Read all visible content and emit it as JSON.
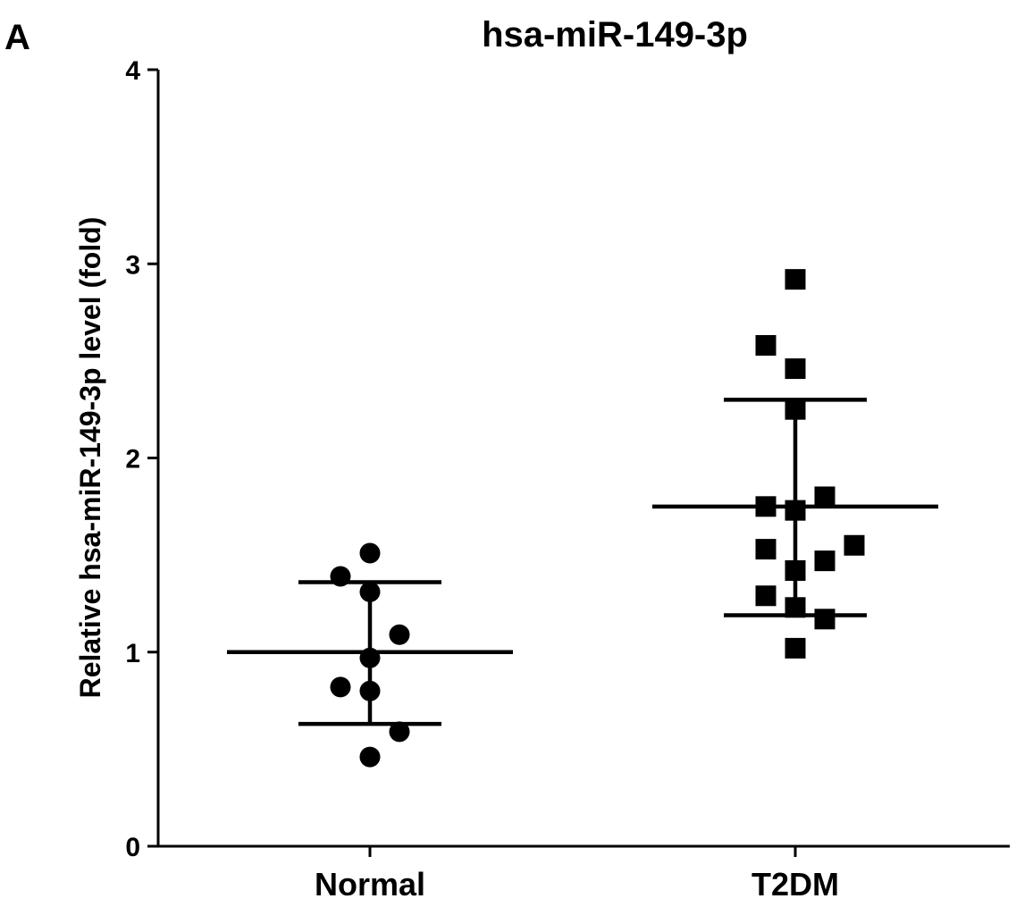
{
  "chart_data": {
    "type": "scatter",
    "panel_label": "A",
    "title": "hsa-miR-149-3p",
    "xlabel": "",
    "ylabel": "Relative hsa-miR-149-3p level (fold)",
    "ylim": [
      0,
      4
    ],
    "yticks": [
      "0",
      "1",
      "2",
      "3",
      "4"
    ],
    "categories": [
      "Normal",
      "T2DM"
    ],
    "grid": false,
    "legend": "none",
    "series": [
      {
        "category": "Normal",
        "marker": "circle",
        "values": [
          1.51,
          1.39,
          1.31,
          1.09,
          0.97,
          0.82,
          0.8,
          0.59,
          0.46
        ],
        "mean": 1.0,
        "sd_upper": 1.36,
        "sd_lower": 0.63
      },
      {
        "category": "T2DM",
        "marker": "square",
        "values": [
          2.92,
          2.58,
          2.46,
          2.25,
          1.8,
          1.75,
          1.73,
          1.55,
          1.53,
          1.47,
          1.42,
          1.29,
          1.23,
          1.17,
          1.02
        ],
        "mean": 1.75,
        "sd_upper": 2.3,
        "sd_lower": 1.19
      }
    ],
    "colors": {
      "marker": "#000000",
      "axis": "#000000"
    }
  }
}
